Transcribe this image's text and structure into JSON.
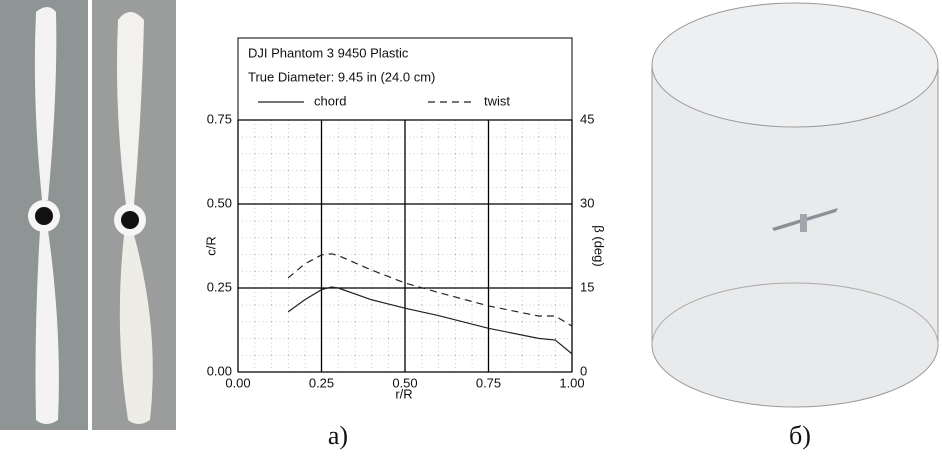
{
  "chart_data": {
    "type": "line",
    "title": "DJI Phantom 3 9450 Plastic",
    "subtitle": "True Diameter:  9.45 in (24.0 cm)",
    "x_label": "r/R",
    "y_label": "c/R",
    "y2_label": "β (deg)",
    "x": [
      0.15,
      0.2,
      0.25,
      0.28,
      0.3,
      0.4,
      0.5,
      0.6,
      0.75,
      0.9,
      0.95,
      1.0
    ],
    "series": [
      {
        "name": "chord",
        "color": "#222222",
        "dash": "solid",
        "values": [
          0.179,
          0.215,
          0.245,
          0.253,
          0.25,
          0.215,
          0.19,
          0.168,
          0.13,
          0.1,
          0.095,
          0.054
        ]
      },
      {
        "name": "twist",
        "color": "#222222",
        "dash": "dashed",
        "axis": "y2",
        "values": [
          16.8,
          19.3,
          20.9,
          21.1,
          20.8,
          18.2,
          15.9,
          14.2,
          11.8,
          10,
          10,
          8.2
        ]
      }
    ],
    "xlim": [
      0,
      1
    ],
    "xticks": [
      {
        "value": 0,
        "label": "0.00"
      },
      {
        "value": 0.25,
        "label": "0.25"
      },
      {
        "value": 0.5,
        "label": "0.50"
      },
      {
        "value": 0.75,
        "label": "0.75"
      },
      {
        "value": 1,
        "label": "1.00"
      }
    ],
    "ylim": [
      0,
      0.75
    ],
    "yticks": [
      {
        "value": 0,
        "label": "0.00"
      },
      {
        "value": 0.25,
        "label": "0.25"
      },
      {
        "value": 0.5,
        "label": "0.50"
      },
      {
        "value": 0.75,
        "label": "0.75"
      }
    ],
    "y2lim": [
      0,
      45
    ],
    "y2ticks": [
      0,
      15,
      30,
      45
    ],
    "grid": true,
    "captions": [
      "a)",
      "б)"
    ]
  }
}
